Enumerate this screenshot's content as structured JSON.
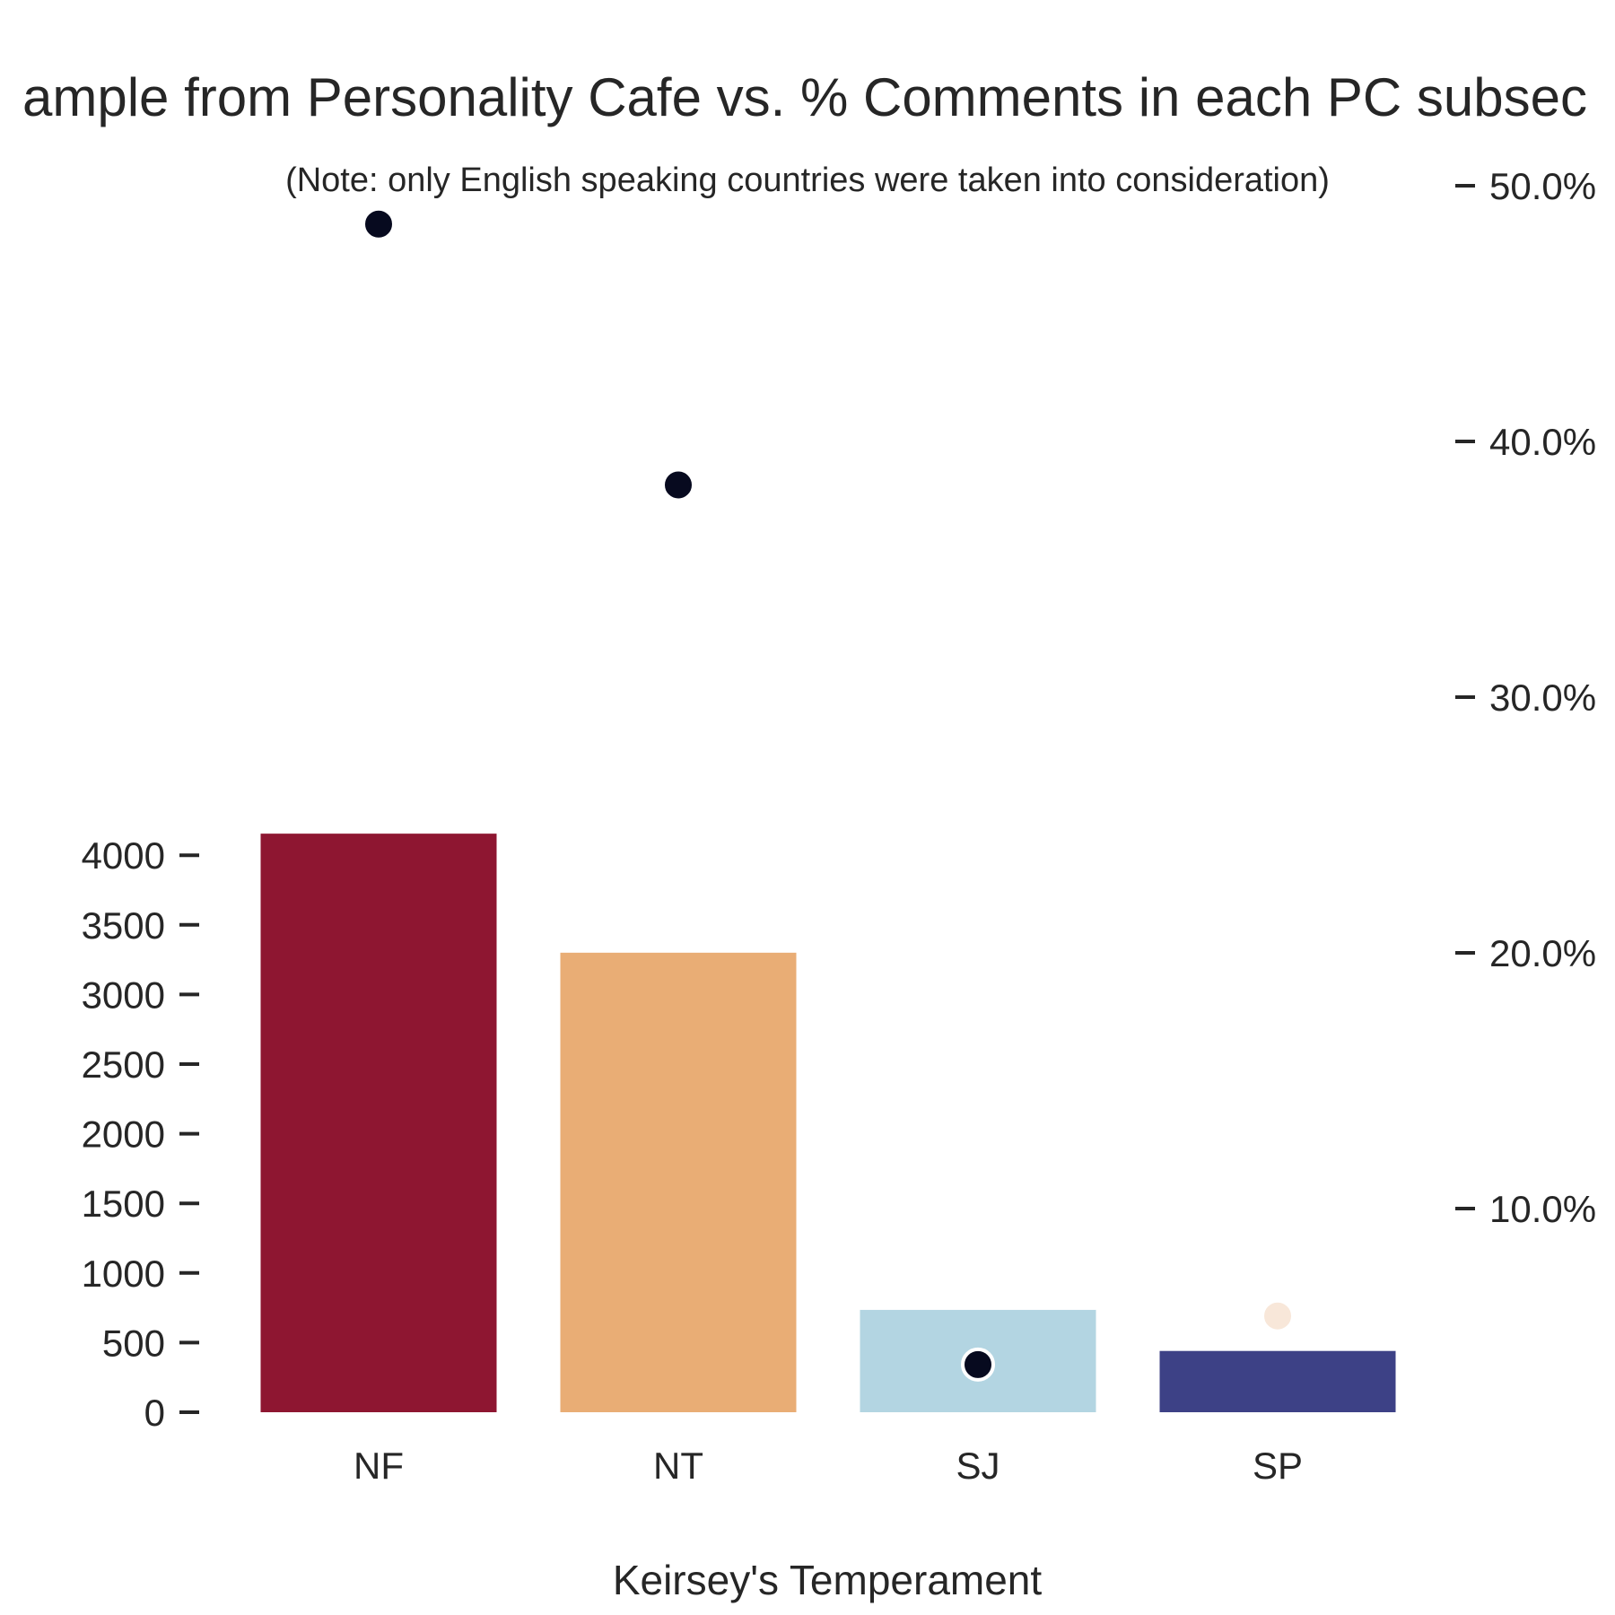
{
  "chart_data": {
    "type": "bar",
    "title": "ample from Personality Cafe vs. % Comments in each PC subsec",
    "subtitle": "(Note: only English speaking countries were taken into consideration)",
    "xlabel": "Keirsey's Temperament",
    "ylabel": "",
    "ylim": [
      0,
      4400
    ],
    "categories": [
      "NF",
      "NT",
      "SJ",
      "SP"
    ],
    "values": [
      4155,
      3300,
      735,
      440
    ],
    "bar_colors": [
      "#8e1631",
      "#e9ad75",
      "#b3d5e2",
      "#3d4186"
    ],
    "yticks": [
      0,
      500,
      1000,
      1500,
      2000,
      2500,
      3000,
      3500,
      4000
    ],
    "ytick_labels": [
      "0",
      "500",
      "1000",
      "1500",
      "2000",
      "2500",
      "3000",
      "3500",
      "4000"
    ],
    "secondary_axis": {
      "ylim": [
        2.0,
        52.0
      ],
      "ticks": [
        10,
        20,
        30,
        40,
        50
      ],
      "tick_labels": [
        "10.0%",
        "20.0%",
        "30.0%",
        "40.0%",
        "50.0%"
      ]
    },
    "overlay_points": {
      "values": [
        48.5,
        38.3,
        3.9,
        5.8
      ],
      "colors": [
        "#070a1f",
        "#070a1f",
        "#070a1f",
        "#f8e7d9"
      ],
      "edge_color": "#ffffff"
    },
    "grid": false,
    "legend": "none"
  }
}
